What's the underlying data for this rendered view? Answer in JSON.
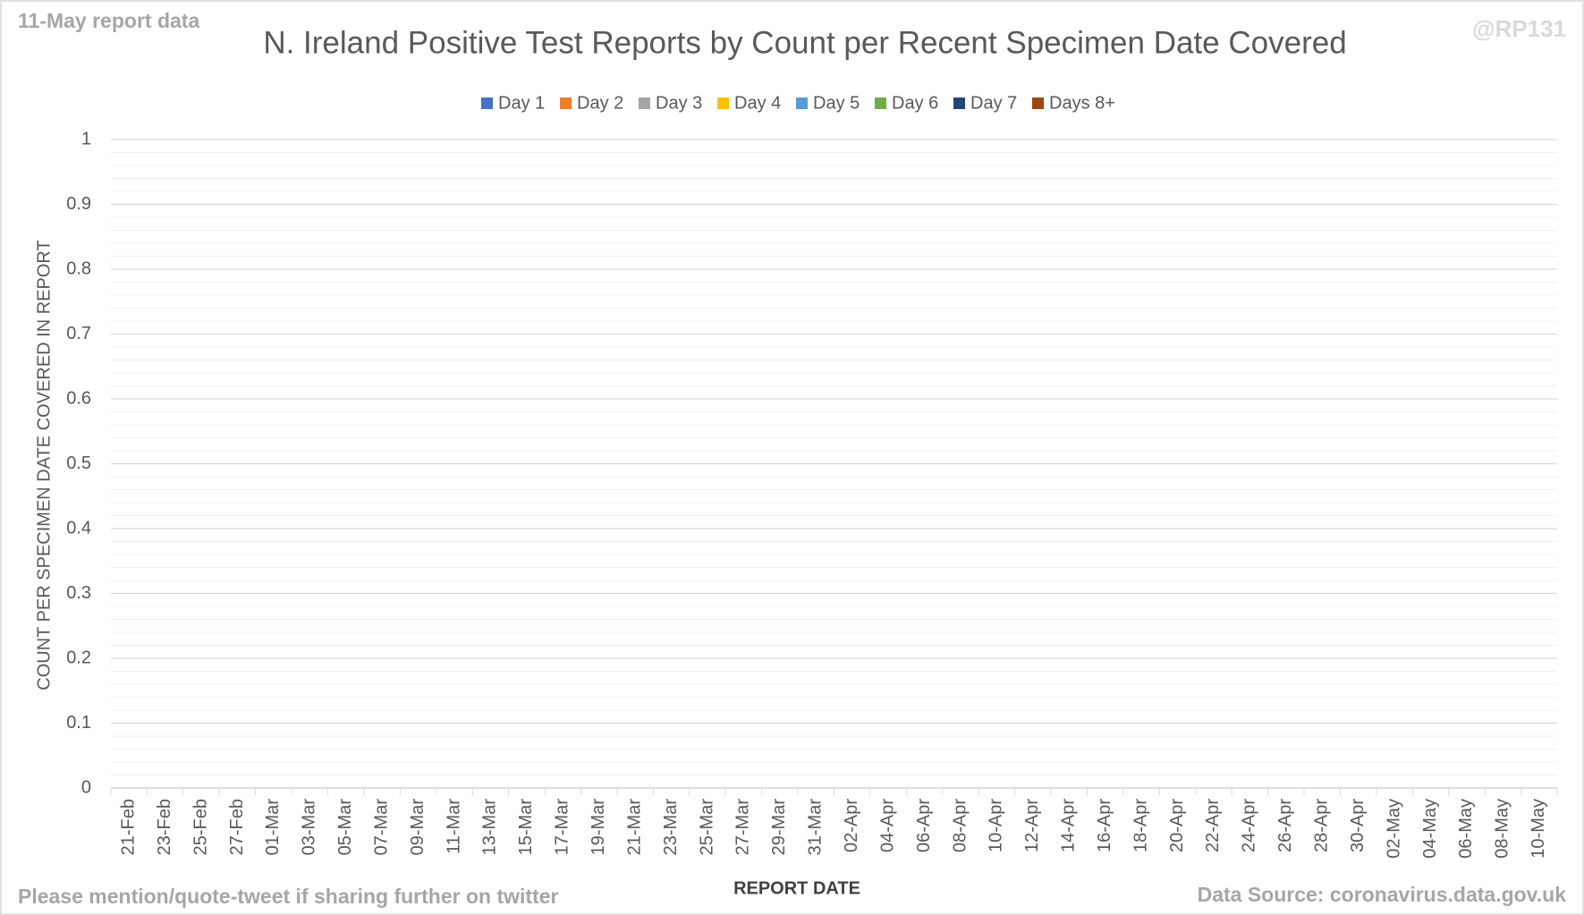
{
  "chart_data": {
    "type": "stacked_bar",
    "title": "N. Ireland Positive Test Reports by Count per Recent Specimen Date Covered",
    "corner_note": "11-May report data",
    "watermark": "@RP131",
    "footer_left": "Please mention/quote-tweet if sharing further on twitter",
    "footer_right": "Data Source: coronavirus.data.gov.uk",
    "x_label": "REPORT DATE",
    "y_label": "COUNT PER SPECIMEN DATE COVERED IN REPORT",
    "categories": [
      "21-Feb",
      "23-Feb",
      "25-Feb",
      "27-Feb",
      "01-Mar",
      "03-Mar",
      "05-Mar",
      "07-Mar",
      "09-Mar",
      "11-Mar",
      "13-Mar",
      "15-Mar",
      "17-Mar",
      "19-Mar",
      "21-Mar",
      "23-Mar",
      "25-Mar",
      "27-Mar",
      "29-Mar",
      "31-Mar",
      "02-Apr",
      "04-Apr",
      "06-Apr",
      "08-Apr",
      "10-Apr",
      "12-Apr",
      "14-Apr",
      "16-Apr",
      "18-Apr",
      "20-Apr",
      "22-Apr",
      "24-Apr",
      "26-Apr",
      "28-Apr",
      "30-Apr",
      "02-May",
      "04-May",
      "06-May",
      "08-May",
      "10-May"
    ],
    "series": [
      {
        "name": "Day 1",
        "color": "#4472c4",
        "values": [
          0,
          0,
          0,
          0,
          0,
          0,
          0,
          0,
          0,
          0,
          0,
          0,
          0,
          0,
          0,
          0,
          0,
          0,
          0,
          0,
          0,
          0,
          0,
          0,
          0,
          0,
          0,
          0,
          0,
          0,
          0,
          0,
          0,
          0,
          0,
          0,
          0,
          0,
          0,
          0
        ]
      },
      {
        "name": "Day 2",
        "color": "#ed7d31",
        "values": [
          0,
          0,
          0,
          0,
          0,
          0,
          0,
          0,
          0,
          0,
          0,
          0,
          0,
          0,
          0,
          0,
          0,
          0,
          0,
          0,
          0,
          0,
          0,
          0,
          0,
          0,
          0,
          0,
          0,
          0,
          0,
          0,
          0,
          0,
          0,
          0,
          0,
          0,
          0,
          0
        ]
      },
      {
        "name": "Day 3",
        "color": "#a5a5a5",
        "values": [
          0,
          0,
          0,
          0,
          0,
          0,
          0,
          0,
          0,
          0,
          0,
          0,
          0,
          0,
          0,
          0,
          0,
          0,
          0,
          0,
          0,
          0,
          0,
          0,
          0,
          0,
          0,
          0,
          0,
          0,
          0,
          0,
          0,
          0,
          0,
          0,
          0,
          0,
          0,
          0
        ]
      },
      {
        "name": "Day 4",
        "color": "#ffc000",
        "values": [
          0,
          0,
          0,
          0,
          0,
          0,
          0,
          0,
          0,
          0,
          0,
          0,
          0,
          0,
          0,
          0,
          0,
          0,
          0,
          0,
          0,
          0,
          0,
          0,
          0,
          0,
          0,
          0,
          0,
          0,
          0,
          0,
          0,
          0,
          0,
          0,
          0,
          0,
          0,
          0
        ]
      },
      {
        "name": "Day 5",
        "color": "#5b9bd5",
        "values": [
          0,
          0,
          0,
          0,
          0,
          0,
          0,
          0,
          0,
          0,
          0,
          0,
          0,
          0,
          0,
          0,
          0,
          0,
          0,
          0,
          0,
          0,
          0,
          0,
          0,
          0,
          0,
          0,
          0,
          0,
          0,
          0,
          0,
          0,
          0,
          0,
          0,
          0,
          0,
          0
        ]
      },
      {
        "name": "Day 6",
        "color": "#70ad47",
        "values": [
          0,
          0,
          0,
          0,
          0,
          0,
          0,
          0,
          0,
          0,
          0,
          0,
          0,
          0,
          0,
          0,
          0,
          0,
          0,
          0,
          0,
          0,
          0,
          0,
          0,
          0,
          0,
          0,
          0,
          0,
          0,
          0,
          0,
          0,
          0,
          0,
          0,
          0,
          0,
          0
        ]
      },
      {
        "name": "Day 7",
        "color": "#264478",
        "values": [
          0,
          0,
          0,
          0,
          0,
          0,
          0,
          0,
          0,
          0,
          0,
          0,
          0,
          0,
          0,
          0,
          0,
          0,
          0,
          0,
          0,
          0,
          0,
          0,
          0,
          0,
          0,
          0,
          0,
          0,
          0,
          0,
          0,
          0,
          0,
          0,
          0,
          0,
          0,
          0
        ]
      },
      {
        "name": "Days 8+",
        "color": "#9e480e",
        "values": [
          0,
          0,
          0,
          0,
          0,
          0,
          0,
          0,
          0,
          0,
          0,
          0,
          0,
          0,
          0,
          0,
          0,
          0,
          0,
          0,
          0,
          0,
          0,
          0,
          0,
          0,
          0,
          0,
          0,
          0,
          0,
          0,
          0,
          0,
          0,
          0,
          0,
          0,
          0,
          0
        ]
      }
    ],
    "ylim": [
      0,
      1
    ],
    "yticks": [
      0,
      0.1,
      0.2,
      0.3,
      0.4,
      0.5,
      0.6,
      0.7,
      0.8,
      0.9,
      1
    ],
    "yminor_ticks": [
      0.02,
      0.04,
      0.06,
      0.08,
      0.12,
      0.14,
      0.16,
      0.18,
      0.22,
      0.24,
      0.26,
      0.28,
      0.32,
      0.34,
      0.36,
      0.38,
      0.42,
      0.44,
      0.46,
      0.48,
      0.52,
      0.54,
      0.56,
      0.58,
      0.62,
      0.64,
      0.66,
      0.68,
      0.72,
      0.74,
      0.76,
      0.78,
      0.82,
      0.84,
      0.86,
      0.88,
      0.92,
      0.94,
      0.96,
      0.98
    ],
    "grid": true,
    "legend": "top"
  }
}
